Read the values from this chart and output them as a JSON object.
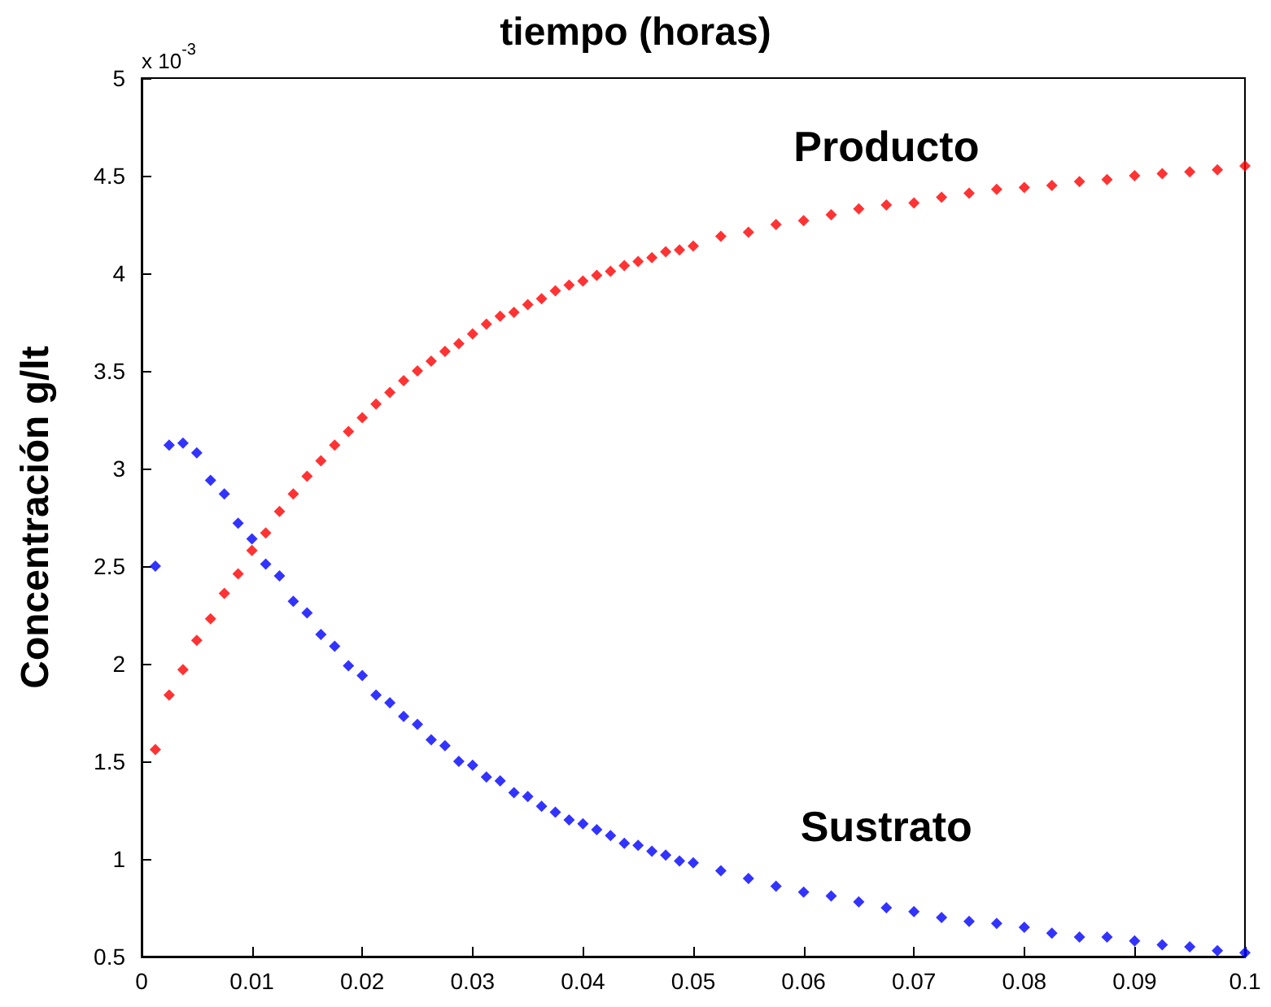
{
  "chart_data": {
    "type": "scatter",
    "title": "tiempo (horas)",
    "ylabel": "Concentración g/lt",
    "annotations": [
      "x 10$^{-3}$"
    ],
    "x": [
      0.00125,
      0.0025,
      0.00375,
      0.005,
      0.00625,
      0.0075,
      0.00875,
      0.01,
      0.01125,
      0.0125,
      0.01375,
      0.015,
      0.01625,
      0.0175,
      0.01875,
      0.02,
      0.02125,
      0.0225,
      0.02375,
      0.025,
      0.02625,
      0.0275,
      0.02875,
      0.03,
      0.03125,
      0.0325,
      0.03375,
      0.035,
      0.03625,
      0.0375,
      0.03875,
      0.04,
      0.04125,
      0.0425,
      0.04375,
      0.045,
      0.04625,
      0.0475,
      0.04875,
      0.05,
      0.0525,
      0.055,
      0.0575,
      0.06,
      0.0625,
      0.065,
      0.0675,
      0.07,
      0.0725,
      0.075,
      0.0775,
      0.08,
      0.0825,
      0.085,
      0.0875,
      0.09,
      0.0925,
      0.095,
      0.0975,
      0.1
    ],
    "series": [
      {
        "name": "Producto",
        "color": "#ff0000",
        "values": [
          1.56,
          1.84,
          1.97,
          2.12,
          2.23,
          2.36,
          2.46,
          2.58,
          2.67,
          2.78,
          2.87,
          2.96,
          3.04,
          3.12,
          3.19,
          3.26,
          3.33,
          3.39,
          3.45,
          3.5,
          3.55,
          3.6,
          3.64,
          3.69,
          3.74,
          3.78,
          3.8,
          3.84,
          3.87,
          3.91,
          3.94,
          3.96,
          3.99,
          4.01,
          4.04,
          4.06,
          4.08,
          4.11,
          4.12,
          4.14,
          4.19,
          4.21,
          4.25,
          4.27,
          4.3,
          4.33,
          4.35,
          4.36,
          4.39,
          4.41,
          4.43,
          4.44,
          4.45,
          4.47,
          4.48,
          4.5,
          4.51,
          4.52,
          4.53,
          4.55
        ]
      },
      {
        "name": "Sustrato",
        "color": "#0000ff",
        "values": [
          2.5,
          3.12,
          3.13,
          3.08,
          2.94,
          2.87,
          2.72,
          2.64,
          2.51,
          2.45,
          2.32,
          2.26,
          2.15,
          2.09,
          1.99,
          1.94,
          1.84,
          1.8,
          1.73,
          1.69,
          1.61,
          1.58,
          1.5,
          1.48,
          1.42,
          1.4,
          1.34,
          1.32,
          1.27,
          1.24,
          1.2,
          1.18,
          1.15,
          1.12,
          1.08,
          1.07,
          1.04,
          1.02,
          0.99,
          0.98,
          0.94,
          0.9,
          0.86,
          0.83,
          0.81,
          0.78,
          0.75,
          0.73,
          0.7,
          0.68,
          0.67,
          0.65,
          0.62,
          0.6,
          0.6,
          0.58,
          0.56,
          0.55,
          0.53,
          0.52
        ]
      }
    ],
    "xlim": [
      0,
      0.1
    ],
    "xticks": [
      0,
      0.01,
      0.02,
      0.03,
      0.04,
      0.05,
      0.06,
      0.07,
      0.08,
      0.09,
      0.1
    ],
    "ylim": [
      0.5,
      5
    ],
    "yticks": [
      0.5,
      1,
      1.5,
      2,
      2.5,
      3,
      3.5,
      4,
      4.5,
      5
    ],
    "marker": "diamond",
    "grid": false,
    "legend": false
  }
}
